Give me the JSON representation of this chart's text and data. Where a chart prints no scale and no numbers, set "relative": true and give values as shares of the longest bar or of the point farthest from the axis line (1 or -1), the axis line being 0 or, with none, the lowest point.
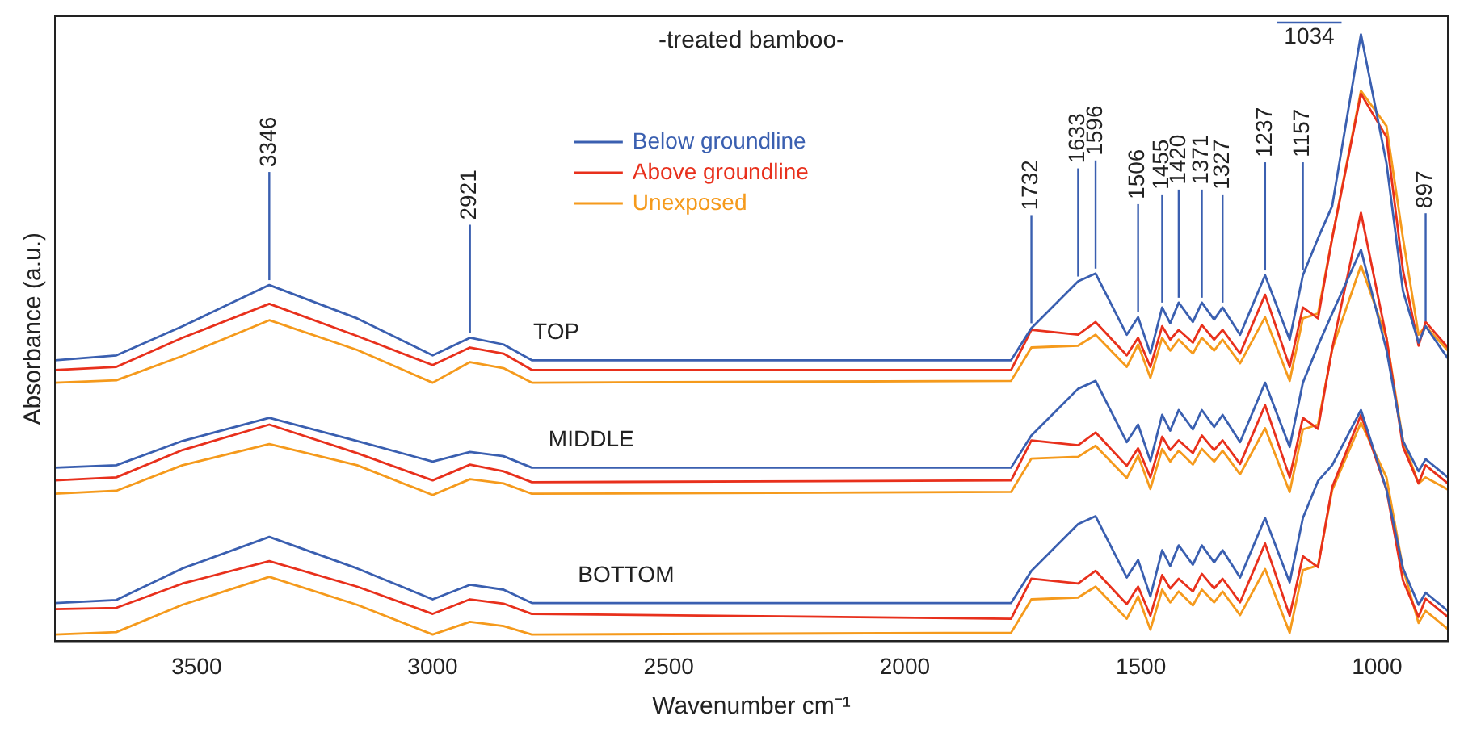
{
  "chart_data": {
    "type": "line",
    "title": "-treated bamboo-",
    "xlabel": "Wavenumber cm⁻¹",
    "ylabel": "Absorbance (a.u.)",
    "relative": true,
    "marker": "none",
    "legend": "top",
    "grid": false,
    "x": [
      3800,
      3670,
      3530,
      3346,
      3160,
      3000,
      2921,
      2850,
      2790,
      1775,
      1732,
      1633,
      1596,
      1530,
      1506,
      1480,
      1455,
      1438,
      1420,
      1390,
      1371,
      1345,
      1327,
      1290,
      1237,
      1185,
      1157,
      1125,
      1095,
      1034,
      980,
      945,
      912,
      897,
      850
    ],
    "xlim": [
      3800,
      850
    ],
    "xticks": [
      3500,
      3000,
      2500,
      2000,
      1500,
      1000
    ],
    "series": [
      {
        "name": "Below groundline",
        "color": "#3a5fb0",
        "values": [
          0.463,
          0.471,
          0.519,
          0.587,
          0.532,
          0.471,
          0.5,
          0.489,
          0.463,
          0.463,
          0.516,
          0.593,
          0.606,
          0.505,
          0.534,
          0.474,
          0.55,
          0.524,
          0.558,
          0.526,
          0.558,
          0.53,
          0.55,
          0.505,
          0.603,
          0.497,
          0.603,
          0.664,
          0.717,
          1,
          0.788,
          0.577,
          0.492,
          0.519,
          0.466
        ]
      },
      {
        "name": "Above groundline",
        "color": "#e8301c",
        "values": [
          0.447,
          0.452,
          0.5,
          0.556,
          0.503,
          0.455,
          0.484,
          0.474,
          0.447,
          0.447,
          0.513,
          0.505,
          0.526,
          0.471,
          0.5,
          0.452,
          0.519,
          0.497,
          0.513,
          0.492,
          0.521,
          0.497,
          0.513,
          0.474,
          0.571,
          0.452,
          0.55,
          0.532,
          0.664,
          0.902,
          0.831,
          0.611,
          0.487,
          0.526,
          0.484
        ]
      },
      {
        "name": "Unexposed",
        "color": "#f59a1c",
        "values": [
          0.426,
          0.43,
          0.47,
          0.529,
          0.48,
          0.426,
          0.46,
          0.45,
          0.426,
          0.429,
          0.484,
          0.487,
          0.505,
          0.452,
          0.489,
          0.434,
          0.5,
          0.479,
          0.497,
          0.474,
          0.5,
          0.479,
          0.497,
          0.458,
          0.534,
          0.429,
          0.532,
          0.54,
          0.664,
          0.907,
          0.849,
          0.664,
          0.505,
          0.519,
          0.479
        ]
      },
      {
        "color": "#3a5fb0",
        "values": [
          0.286,
          0.29,
          0.33,
          0.368,
          0.33,
          0.296,
          0.312,
          0.305,
          0.286,
          0.286,
          0.339,
          0.416,
          0.429,
          0.328,
          0.357,
          0.297,
          0.373,
          0.347,
          0.381,
          0.349,
          0.381,
          0.353,
          0.373,
          0.328,
          0.426,
          0.32,
          0.426,
          0.487,
          0.54,
          0.645,
          0.48,
          0.33,
          0.28,
          0.3,
          0.27
        ]
      },
      {
        "color": "#e8301c",
        "values": [
          0.265,
          0.27,
          0.315,
          0.357,
          0.31,
          0.265,
          0.291,
          0.28,
          0.262,
          0.265,
          0.331,
          0.323,
          0.344,
          0.289,
          0.318,
          0.27,
          0.337,
          0.315,
          0.331,
          0.31,
          0.339,
          0.315,
          0.331,
          0.292,
          0.389,
          0.27,
          0.368,
          0.35,
          0.482,
          0.706,
          0.5,
          0.32,
          0.26,
          0.29,
          0.26
        ]
      },
      {
        "color": "#f59a1c",
        "values": [
          0.243,
          0.248,
          0.29,
          0.325,
          0.29,
          0.241,
          0.267,
          0.26,
          0.243,
          0.246,
          0.301,
          0.304,
          0.322,
          0.269,
          0.306,
          0.251,
          0.317,
          0.296,
          0.314,
          0.291,
          0.317,
          0.296,
          0.314,
          0.275,
          0.351,
          0.246,
          0.349,
          0.357,
          0.481,
          0.619,
          0.5,
          0.33,
          0.26,
          0.27,
          0.25
        ]
      },
      {
        "color": "#3a5fb0",
        "values": [
          0.063,
          0.068,
          0.12,
          0.172,
          0.12,
          0.069,
          0.093,
          0.085,
          0.063,
          0.063,
          0.116,
          0.193,
          0.206,
          0.105,
          0.134,
          0.074,
          0.15,
          0.124,
          0.158,
          0.126,
          0.158,
          0.13,
          0.15,
          0.105,
          0.203,
          0.097,
          0.203,
          0.264,
          0.29,
          0.381,
          0.25,
          0.12,
          0.06,
          0.08,
          0.05
        ]
      },
      {
        "color": "#e8301c",
        "values": [
          0.053,
          0.055,
          0.095,
          0.132,
          0.09,
          0.045,
          0.069,
          0.062,
          0.045,
          0.037,
          0.103,
          0.095,
          0.116,
          0.061,
          0.09,
          0.042,
          0.109,
          0.087,
          0.103,
          0.082,
          0.111,
          0.087,
          0.103,
          0.064,
          0.161,
          0.042,
          0.14,
          0.122,
          0.254,
          0.373,
          0.25,
          0.1,
          0.04,
          0.07,
          0.04
        ]
      },
      {
        "color": "#f59a1c",
        "values": [
          0.011,
          0.015,
          0.06,
          0.106,
          0.06,
          0.011,
          0.032,
          0.025,
          0.011,
          0.014,
          0.069,
          0.072,
          0.09,
          0.037,
          0.074,
          0.019,
          0.085,
          0.064,
          0.082,
          0.059,
          0.085,
          0.064,
          0.082,
          0.043,
          0.119,
          0.014,
          0.117,
          0.125,
          0.249,
          0.36,
          0.27,
          0.12,
          0.03,
          0.05,
          0.02
        ]
      }
    ],
    "annotations": [
      "TOP",
      "MIDDLE",
      "BOTTOM",
      {
        "text": "3346",
        "x": 3346,
        "y": 0.587
      },
      {
        "text": "2921",
        "x": 2921,
        "y": 0.5
      },
      {
        "text": "1732",
        "x": 1732,
        "y": 0.516
      },
      {
        "text": "1633",
        "x": 1633,
        "y": 0.593
      },
      {
        "text": "1596",
        "x": 1596,
        "y": 0.606
      },
      {
        "text": "1506",
        "x": 1506,
        "y": 0.534
      },
      {
        "text": "1455",
        "x": 1455,
        "y": 0.55
      },
      {
        "text": "1420",
        "x": 1420,
        "y": 0.558
      },
      {
        "text": "1371",
        "x": 1371,
        "y": 0.558
      },
      {
        "text": "1327",
        "x": 1327,
        "y": 0.55
      },
      {
        "text": "1237",
        "x": 1237,
        "y": 0.603
      },
      {
        "text": "1157",
        "x": 1157,
        "y": 0.603
      },
      {
        "text": "1034",
        "x": 1034,
        "y": 1
      },
      {
        "text": "897",
        "x": 897,
        "y": 0.519
      }
    ]
  }
}
